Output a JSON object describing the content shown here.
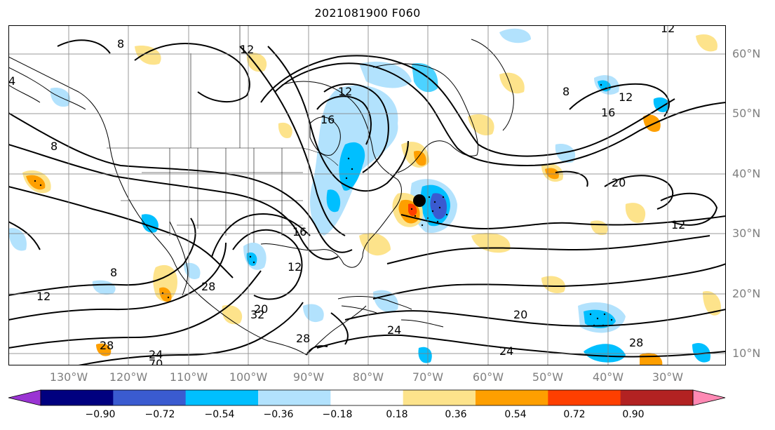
{
  "title": "2021081900 F060",
  "lat_labels": [
    "60°N",
    "50°N",
    "40°N",
    "30°N",
    "20°N",
    "10°N"
  ],
  "lon_labels": [
    "130°W",
    "120°W",
    "110°W",
    "100°W",
    "90°W",
    "80°W",
    "70°W",
    "60°W",
    "50°W",
    "40°W",
    "30°W"
  ],
  "contour_labels": [
    {
      "text": "12"
    },
    {
      "text": "12"
    },
    {
      "text": "12"
    },
    {
      "text": "12"
    },
    {
      "text": "12"
    },
    {
      "text": "12"
    },
    {
      "text": "12"
    },
    {
      "text": "16"
    },
    {
      "text": "16"
    },
    {
      "text": "16"
    },
    {
      "text": "20"
    },
    {
      "text": "20"
    },
    {
      "text": "20"
    },
    {
      "text": "24"
    },
    {
      "text": "24"
    },
    {
      "text": "24"
    },
    {
      "text": "28"
    },
    {
      "text": "28"
    },
    {
      "text": "28"
    },
    {
      "text": "28"
    },
    {
      "text": "32"
    },
    {
      "text": "8"
    },
    {
      "text": "8"
    },
    {
      "text": "8"
    },
    {
      "text": "8"
    },
    {
      "text": "4"
    },
    {
      "text": "70"
    }
  ],
  "colorbar": {
    "ticks": [
      "−0.90",
      "−0.72",
      "−0.54",
      "−0.36",
      "−0.18",
      "0.18",
      "0.36",
      "0.54",
      "0.72",
      "0.90"
    ],
    "colors": [
      "#9a34d3",
      "#00007f",
      "#3a5bd0",
      "#00bfff",
      "#b2e2fd",
      "#ffffff",
      "#fde38b",
      "#fe9f00",
      "#fe3f00",
      "#b22222",
      "#ff89b4"
    ]
  },
  "colors": {
    "blue_light": "#b2e2fd",
    "blue": "#00bfff",
    "blue_dark": "#3a5bd0",
    "navy": "#00007f",
    "yellow": "#fde38b",
    "orange": "#fe9f00",
    "red_orange": "#fe3f00"
  },
  "marker": {
    "name": "storm-center",
    "lon": -70.5,
    "lat": 35.5
  }
}
